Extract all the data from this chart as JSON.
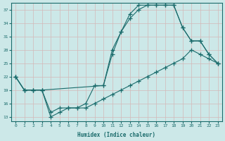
{
  "xlabel": "Humidex (Indice chaleur)",
  "bg_color": "#cce8e8",
  "line_color": "#1a6b6b",
  "grid_color": "#b8d8d8",
  "xlim": [
    -0.5,
    23.5
  ],
  "ylim": [
    12,
    38.5
  ],
  "yticks": [
    13,
    16,
    19,
    22,
    25,
    28,
    31,
    34,
    37
  ],
  "xticks": [
    0,
    1,
    2,
    3,
    4,
    5,
    6,
    7,
    8,
    9,
    10,
    11,
    12,
    13,
    14,
    15,
    16,
    17,
    18,
    19,
    20,
    21,
    22,
    23
  ],
  "curve1_x": [
    0,
    1,
    2,
    3,
    10,
    11,
    12,
    13,
    14,
    15,
    16,
    17,
    18,
    19,
    20,
    21,
    22,
    23
  ],
  "curve1_y": [
    22,
    19,
    19,
    19,
    20,
    28,
    32,
    35,
    37,
    38,
    38,
    38,
    38,
    33,
    30,
    30,
    27,
    25
  ],
  "curve2_x": [
    0,
    1,
    2,
    3,
    4,
    5,
    6,
    7,
    8,
    9,
    10,
    11,
    12,
    13,
    14,
    15,
    16,
    17,
    18,
    19,
    20,
    21,
    22,
    23
  ],
  "curve2_y": [
    22,
    19,
    19,
    19,
    14,
    15,
    15,
    15,
    16,
    20,
    20,
    27,
    32,
    36,
    38,
    38,
    38,
    38,
    38,
    33,
    30,
    30,
    27,
    25
  ],
  "curve3_x": [
    0,
    1,
    2,
    3,
    4,
    5,
    6,
    7,
    8,
    9,
    10,
    11,
    12,
    13,
    14,
    15,
    16,
    17,
    18,
    19,
    20,
    21,
    22,
    23
  ],
  "curve3_y": [
    22,
    19,
    19,
    19,
    13,
    14,
    15,
    15,
    15,
    16,
    17,
    18,
    19,
    20,
    21,
    22,
    23,
    24,
    25,
    26,
    28,
    27,
    26,
    25
  ]
}
